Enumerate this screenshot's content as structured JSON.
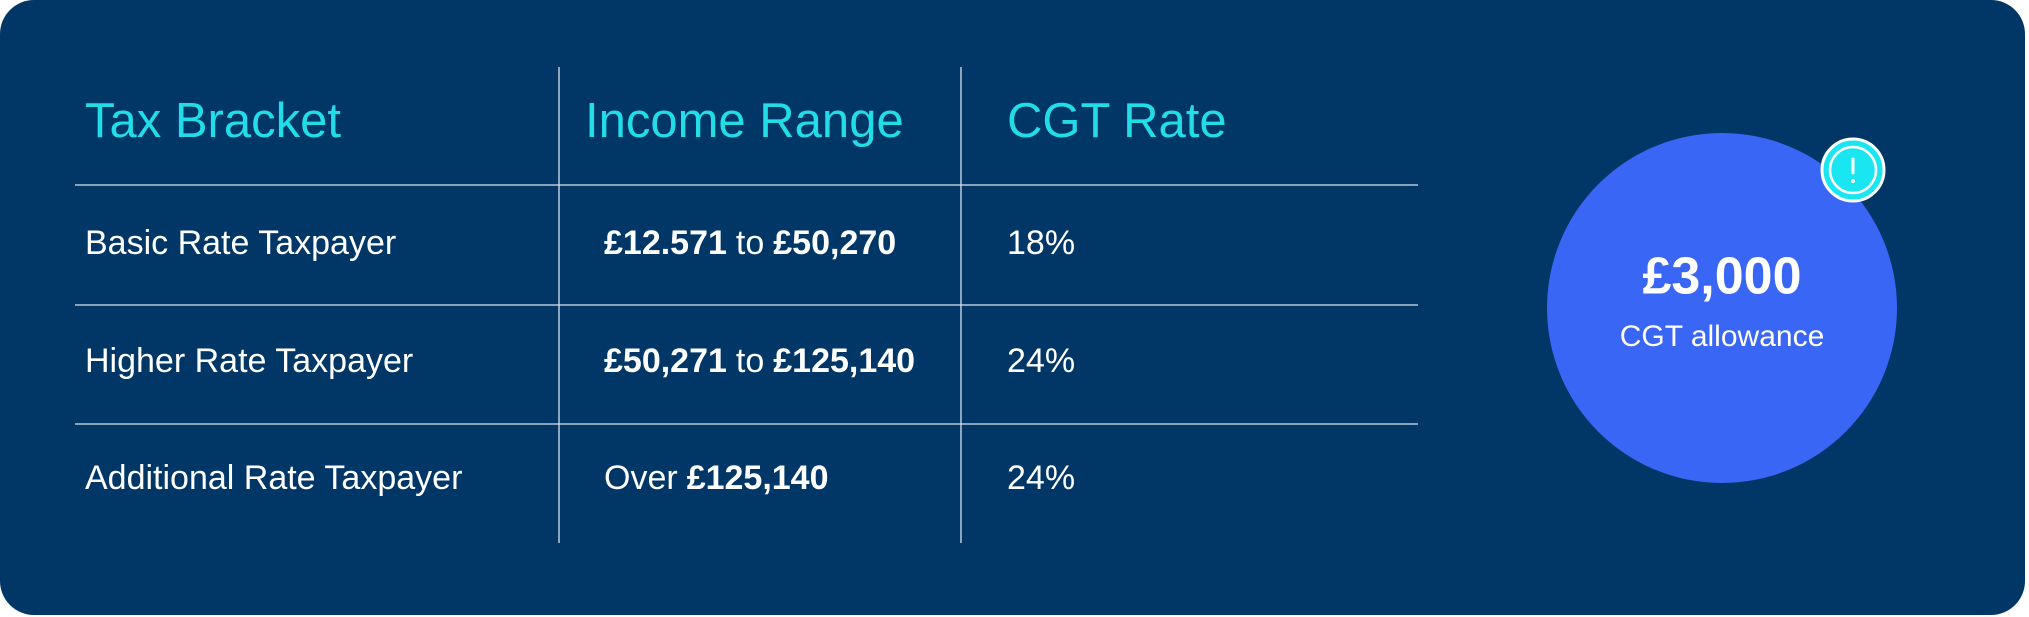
{
  "table": {
    "header": [
      "Tax Bracket",
      "Income Range",
      "CGT Rate"
    ],
    "rows": [
      [
        "Basic Rate Taxpayer",
        [
          "£12.571",
          "to",
          "£50,270"
        ],
        "18%"
      ],
      [
        "Higher Rate Taxpayer",
        [
          "£50,271",
          "to",
          "£125,140"
        ],
        "24%"
      ],
      [
        "Additional Rate Taxpayer",
        [
          "Over",
          "£125,140"
        ],
        "24%"
      ]
    ]
  },
  "allowance": {
    "amount": "£3,000",
    "label": "CGT allowance"
  }
}
